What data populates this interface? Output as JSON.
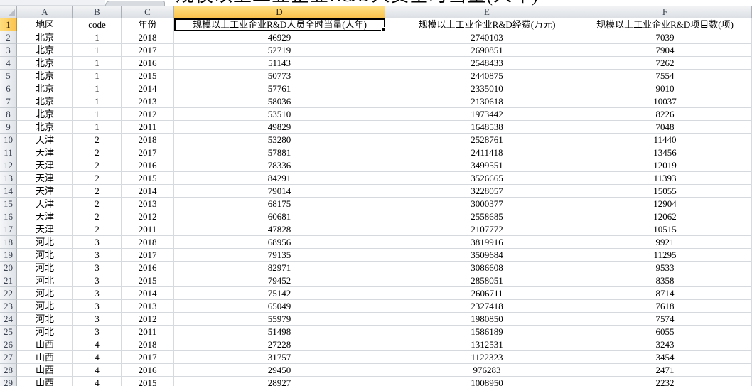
{
  "formula_bar": {
    "text": "规模以上工业企业R&D人员全时当量(人年)"
  },
  "sheet": {
    "column_letters": [
      "A",
      "B",
      "C",
      "D",
      "E",
      "F",
      ""
    ],
    "selected_column": "D",
    "selected_row_header": 1,
    "active_cell": "D1",
    "rows": [
      {
        "n": 1,
        "cells": [
          "地区",
          "code",
          "年份",
          "规模以上工业企业R&D人员全时当量(人年)",
          "规模以上工业企业R&D经费(万元)",
          "规模以上工业企业R&D项目数(项)"
        ]
      },
      {
        "n": 2,
        "cells": [
          "北京",
          "1",
          "2018",
          "46929",
          "2740103",
          "7039"
        ]
      },
      {
        "n": 3,
        "cells": [
          "北京",
          "1",
          "2017",
          "52719",
          "2690851",
          "7904"
        ]
      },
      {
        "n": 4,
        "cells": [
          "北京",
          "1",
          "2016",
          "51143",
          "2548433",
          "7262"
        ]
      },
      {
        "n": 5,
        "cells": [
          "北京",
          "1",
          "2015",
          "50773",
          "2440875",
          "7554"
        ]
      },
      {
        "n": 6,
        "cells": [
          "北京",
          "1",
          "2014",
          "57761",
          "2335010",
          "9010"
        ]
      },
      {
        "n": 7,
        "cells": [
          "北京",
          "1",
          "2013",
          "58036",
          "2130618",
          "10037"
        ]
      },
      {
        "n": 8,
        "cells": [
          "北京",
          "1",
          "2012",
          "53510",
          "1973442",
          "8226"
        ]
      },
      {
        "n": 9,
        "cells": [
          "北京",
          "1",
          "2011",
          "49829",
          "1648538",
          "7048"
        ]
      },
      {
        "n": 10,
        "cells": [
          "天津",
          "2",
          "2018",
          "53280",
          "2528761",
          "11440"
        ]
      },
      {
        "n": 11,
        "cells": [
          "天津",
          "2",
          "2017",
          "57881",
          "2411418",
          "13456"
        ]
      },
      {
        "n": 12,
        "cells": [
          "天津",
          "2",
          "2016",
          "78336",
          "3499551",
          "12019"
        ]
      },
      {
        "n": 13,
        "cells": [
          "天津",
          "2",
          "2015",
          "84291",
          "3526665",
          "11393"
        ]
      },
      {
        "n": 14,
        "cells": [
          "天津",
          "2",
          "2014",
          "79014",
          "3228057",
          "15055"
        ]
      },
      {
        "n": 15,
        "cells": [
          "天津",
          "2",
          "2013",
          "68175",
          "3000377",
          "12904"
        ]
      },
      {
        "n": 16,
        "cells": [
          "天津",
          "2",
          "2012",
          "60681",
          "2558685",
          "12062"
        ]
      },
      {
        "n": 17,
        "cells": [
          "天津",
          "2",
          "2011",
          "47828",
          "2107772",
          "10515"
        ]
      },
      {
        "n": 18,
        "cells": [
          "河北",
          "3",
          "2018",
          "68956",
          "3819916",
          "9921"
        ]
      },
      {
        "n": 19,
        "cells": [
          "河北",
          "3",
          "2017",
          "79135",
          "3509684",
          "11295"
        ]
      },
      {
        "n": 20,
        "cells": [
          "河北",
          "3",
          "2016",
          "82971",
          "3086608",
          "9533"
        ]
      },
      {
        "n": 21,
        "cells": [
          "河北",
          "3",
          "2015",
          "79452",
          "2858051",
          "8358"
        ]
      },
      {
        "n": 22,
        "cells": [
          "河北",
          "3",
          "2014",
          "75142",
          "2606711",
          "8714"
        ]
      },
      {
        "n": 23,
        "cells": [
          "河北",
          "3",
          "2013",
          "65049",
          "2327418",
          "7618"
        ]
      },
      {
        "n": 24,
        "cells": [
          "河北",
          "3",
          "2012",
          "55979",
          "1980850",
          "7574"
        ]
      },
      {
        "n": 25,
        "cells": [
          "河北",
          "3",
          "2011",
          "51498",
          "1586189",
          "6055"
        ]
      },
      {
        "n": 26,
        "cells": [
          "山西",
          "4",
          "2018",
          "27228",
          "1312531",
          "3243"
        ]
      },
      {
        "n": 27,
        "cells": [
          "山西",
          "4",
          "2017",
          "31757",
          "1122323",
          "3454"
        ]
      },
      {
        "n": 28,
        "cells": [
          "山西",
          "4",
          "2016",
          "29450",
          "976283",
          "2471"
        ]
      },
      {
        "n": 29,
        "cells": [
          "山西",
          "4",
          "2015",
          "28927",
          "1008950",
          "2232"
        ]
      }
    ]
  },
  "colors": {
    "selection_accent": "#FBC34D",
    "selection_accent_light": "#FFE286",
    "header_gray": "#DCE0E5",
    "gridline": "#D6D9DD",
    "active_cell_border": "#000000"
  }
}
